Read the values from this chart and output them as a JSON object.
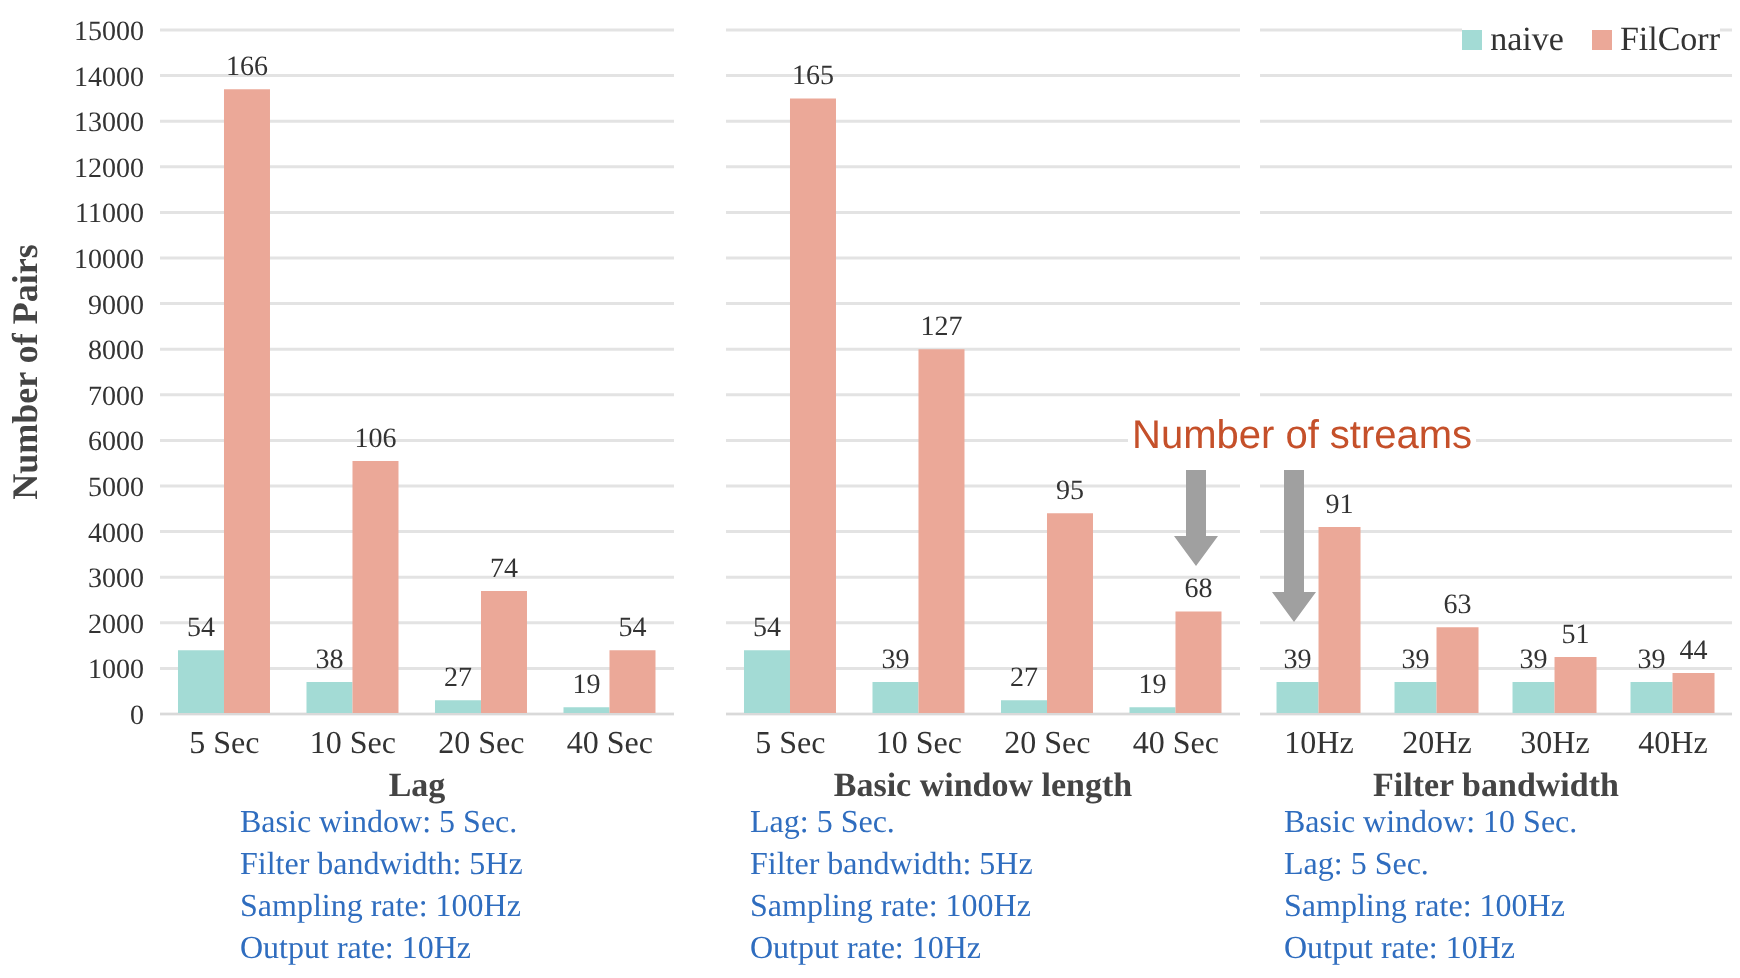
{
  "chart_data": [
    {
      "type": "bar",
      "xlabel": "Lag",
      "ylabel": "Number of Pairs",
      "categories": [
        "5 Sec",
        "10 Sec",
        "20 Sec",
        "40 Sec"
      ],
      "series": [
        {
          "color": "#a3dbd5",
          "values": [
            1400,
            700,
            300,
            150
          ]
        },
        {
          "color": "#eba898",
          "values": [
            13700,
            5550,
            2700,
            1400
          ]
        }
      ],
      "ylim": [
        0,
        15000
      ],
      "yticks": [
        0,
        1000,
        2000,
        3000,
        4000,
        5000,
        6000,
        7000,
        8000,
        9000,
        10000,
        11000,
        12000,
        13000,
        14000,
        15000
      ],
      "grid": "y",
      "annotations": [
        "Basic window: 5 Sec.",
        "Filter bandwidth: 5Hz",
        "Sampling rate: 100Hz",
        "Output rate: 10Hz",
        {
          "text": "54",
          "x": "5 Sec",
          "y": 1400
        },
        {
          "text": "38",
          "x": "10 Sec",
          "y": 700
        },
        {
          "text": "27",
          "x": "20 Sec",
          "y": 300
        },
        {
          "text": "19",
          "x": "40 Sec",
          "y": 150
        },
        {
          "text": "166",
          "x": "5 Sec",
          "y": 13700
        },
        {
          "text": "106",
          "x": "10 Sec",
          "y": 5550
        },
        {
          "text": "74",
          "x": "20 Sec",
          "y": 2700
        },
        {
          "text": "54",
          "x": "40 Sec",
          "y": 1400
        }
      ]
    },
    {
      "type": "bar",
      "xlabel": "Basic window length",
      "categories": [
        "5 Sec",
        "10 Sec",
        "20 Sec",
        "40 Sec"
      ],
      "series": [
        {
          "color": "#a3dbd5",
          "values": [
            1400,
            700,
            300,
            150
          ]
        },
        {
          "color": "#eba898",
          "values": [
            13500,
            8000,
            4400,
            2250
          ]
        }
      ],
      "ylim": [
        0,
        15000
      ],
      "yticks": [
        0,
        1000,
        2000,
        3000,
        4000,
        5000,
        6000,
        7000,
        8000,
        9000,
        10000,
        11000,
        12000,
        13000,
        14000,
        15000
      ],
      "grid": "y",
      "tick_labels": "x",
      "annotations": [
        "Lag: 5 Sec.",
        "Filter bandwidth: 5Hz",
        "Sampling rate: 100Hz",
        "Output rate: 10Hz",
        "Number of streams",
        {
          "text": "54",
          "x": "5 Sec",
          "y": 1400
        },
        {
          "text": "39",
          "x": "10 Sec",
          "y": 700
        },
        {
          "text": "27",
          "x": "20 Sec",
          "y": 300
        },
        {
          "text": "19",
          "x": "40 Sec",
          "y": 150
        },
        {
          "text": "165",
          "x": "5 Sec",
          "y": 13500
        },
        {
          "text": "127",
          "x": "10 Sec",
          "y": 8000
        },
        {
          "text": "95",
          "x": "20 Sec",
          "y": 4400
        },
        {
          "text": "68",
          "x": "40 Sec",
          "y": 2250
        }
      ]
    },
    {
      "type": "bar",
      "xlabel": "Filter bandwidth",
      "categories": [
        "10Hz",
        "20Hz",
        "30Hz",
        "40Hz"
      ],
      "series": [
        {
          "name": "naive",
          "color": "#a3dbd5",
          "values": [
            700,
            700,
            700,
            700
          ]
        },
        {
          "name": "FilCorr",
          "color": "#eba898",
          "values": [
            4100,
            1900,
            1250,
            900
          ]
        }
      ],
      "ylim": [
        0,
        15000
      ],
      "yticks": [
        0,
        1000,
        2000,
        3000,
        4000,
        5000,
        6000,
        7000,
        8000,
        9000,
        10000,
        11000,
        12000,
        13000,
        14000,
        15000
      ],
      "grid": "y",
      "tick_labels": "x",
      "legend": "top right",
      "annotations": [
        "Basic window: 10 Sec.",
        "Lag: 5 Sec.",
        "Sampling rate: 100Hz",
        "Output rate: 10Hz",
        {
          "text": "39",
          "x": "10Hz",
          "y": 700
        },
        {
          "text": "39",
          "x": "20Hz",
          "y": 700
        },
        {
          "text": "39",
          "x": "30Hz",
          "y": 700
        },
        {
          "text": "39",
          "x": "40Hz",
          "y": 700
        },
        {
          "text": "91",
          "x": "10Hz",
          "y": 4100
        },
        {
          "text": "63",
          "x": "20Hz",
          "y": 1900
        },
        {
          "text": "51",
          "x": "30Hz",
          "y": 1250
        },
        {
          "text": "44",
          "x": "40Hz",
          "y": 900
        }
      ]
    }
  ]
}
